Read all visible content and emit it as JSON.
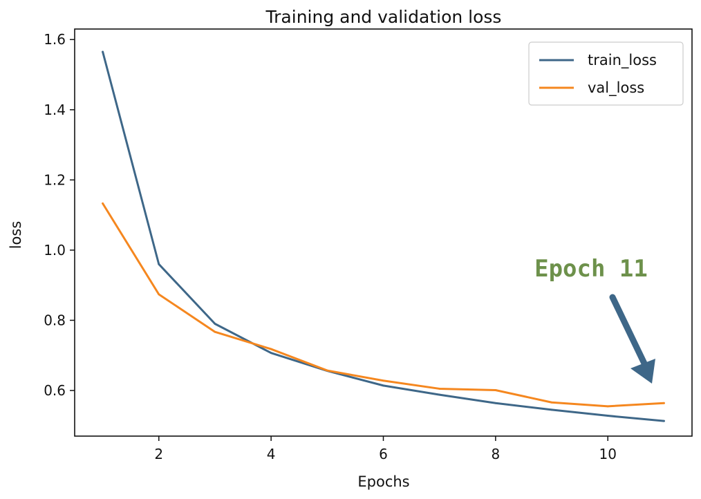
{
  "chart_data": {
    "type": "line",
    "title": "Training and validation loss",
    "xlabel": "Epochs",
    "ylabel": "loss",
    "xlim": [
      0.5,
      11.5
    ],
    "ylim": [
      0.47,
      1.63
    ],
    "xticks": [
      2,
      4,
      6,
      8,
      10
    ],
    "yticks": [
      0.6,
      0.8,
      1.0,
      1.2,
      1.4,
      1.6
    ],
    "ytick_labels": [
      "0.6",
      "0.8",
      "1.0",
      "1.2",
      "1.4",
      "1.6"
    ],
    "x": [
      1,
      2,
      3,
      4,
      5,
      6,
      7,
      8,
      9,
      10,
      11
    ],
    "series": [
      {
        "name": "train_loss",
        "color": "#3e6788",
        "values": [
          1.565,
          0.96,
          0.79,
          0.707,
          0.656,
          0.614,
          0.588,
          0.564,
          0.545,
          0.528,
          0.513
        ]
      },
      {
        "name": "val_loss",
        "color": "#f5871f",
        "values": [
          1.133,
          0.874,
          0.767,
          0.718,
          0.657,
          0.628,
          0.605,
          0.601,
          0.566,
          0.555,
          0.564
        ]
      }
    ],
    "grid": false,
    "legend": "top-right",
    "annotation": {
      "text": "Epoch 11",
      "color": "#6d914b",
      "arrow_color": "#3e6788",
      "points_to_x": 11
    }
  }
}
